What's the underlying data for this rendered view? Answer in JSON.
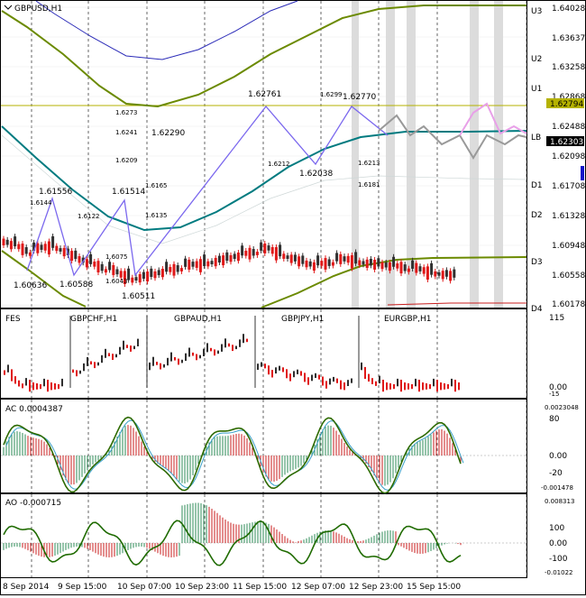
{
  "main_panel": {
    "symbol_label": "GBPUSD,H1",
    "price_axis": [
      "1.64028",
      "1.63637",
      "1.63258",
      "1.62868",
      "1.62488",
      "1.62098",
      "1.61708",
      "1.61328",
      "1.60948",
      "1.60558",
      "1.60178"
    ],
    "current_price": "1.62303",
    "level_price": "1.62794",
    "level_tags": [
      "U3",
      "U2",
      "U1",
      "LB",
      "D1",
      "D2",
      "D3",
      "D4"
    ],
    "swing_labels": [
      "1.61556",
      "1.61514",
      "1.62290",
      "1.62761",
      "1.6299",
      "1.62770",
      "1.62038",
      "1.60636",
      "1.60588",
      "1.60511"
    ],
    "small_labels": [
      "1.6144",
      "1.6122",
      "1.6075",
      "1.6043",
      "1.6165",
      "1.6135",
      "1.6273",
      "1.6241",
      "1.6209",
      "1.6212",
      "1.6213",
      "1.6181"
    ]
  },
  "fes_panel": {
    "title": "FES",
    "pairs": [
      "GBPCHF,H1",
      "GBPAUD,H1",
      "GBPJPY,H1",
      "EURGBP,H1"
    ],
    "axis_top": "115",
    "axis_mid": "0.00",
    "axis_bottom": "-15"
  },
  "ac_panel": {
    "title": "AC 0.0004387",
    "axis": [
      "0.0023048",
      "80",
      "0.00",
      "-20",
      "-0.001478"
    ]
  },
  "ao_panel": {
    "title": "AO -0.000715",
    "axis": [
      "0.008313",
      "100",
      "0.00",
      "-100",
      "-0.01022"
    ]
  },
  "time_axis": [
    "8 Sep 2014",
    "9 Sep 15:00",
    "10 Sep 07:00",
    "10 Sep 23:00",
    "11 Sep 15:00",
    "12 Sep 07:00",
    "12 Sep 23:00",
    "15 Sep 15:00"
  ],
  "colors": {
    "bull": "#e01818",
    "bear": "#303030",
    "envelope": "#6b8a00",
    "ma": "#007b80",
    "zigzag": "#7b68ee",
    "level": "#b5b200",
    "blue_line": "#2b2bb8",
    "ac_up": "#2e8b57",
    "ac_down": "#c81e1e",
    "accent": "#1414c8"
  }
}
